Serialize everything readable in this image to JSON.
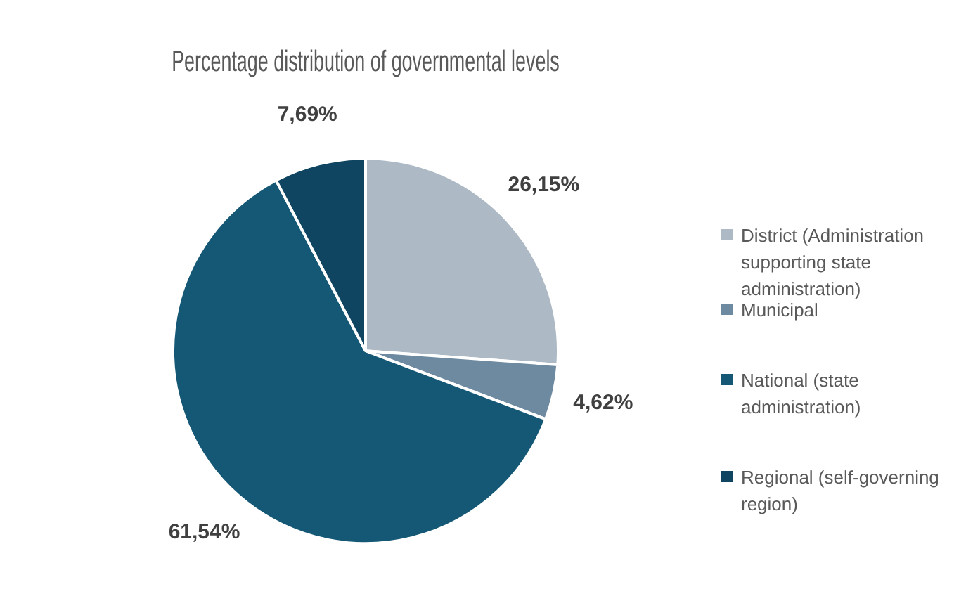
{
  "chart_data": {
    "type": "pie",
    "title": "Percentage distribution of governmental levels",
    "categories": [
      "District (Administration supporting state administration)",
      "Municipal",
      "National (state administration)",
      "Regional (self-governing region)"
    ],
    "values": [
      26.15,
      4.62,
      61.54,
      7.69
    ],
    "colors": [
      "#adb9c4",
      "#6e8aa0",
      "#145875",
      "#0f4560"
    ],
    "value_labels": [
      "26,15%",
      "4,62%",
      "61,54%",
      "7,69%"
    ],
    "legend": "right"
  }
}
